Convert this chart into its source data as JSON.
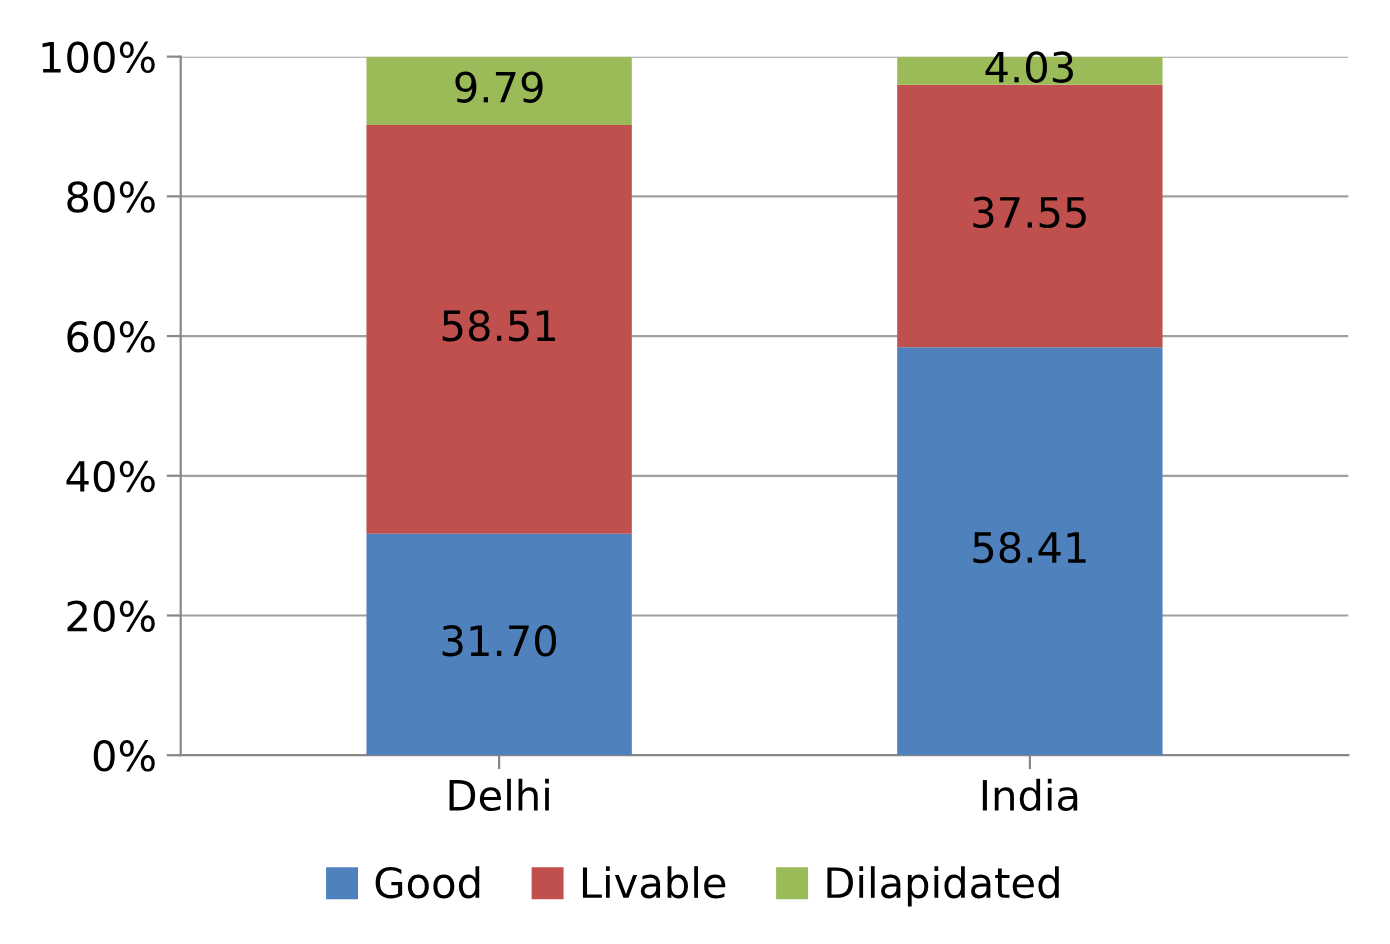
{
  "chart_data": {
    "type": "bar",
    "stacked": true,
    "categories": [
      "Delhi",
      "India"
    ],
    "series": [
      {
        "name": "Good",
        "color": "#4f81bd",
        "values": [
          31.7,
          58.41
        ],
        "value_labels": [
          "31.70",
          "58.41"
        ]
      },
      {
        "name": "Livable",
        "color": "#c0504d",
        "values": [
          58.51,
          37.55
        ],
        "value_labels": [
          "58.51",
          "37.55"
        ]
      },
      {
        "name": "Dilapidated",
        "color": "#9bbb59",
        "values": [
          9.79,
          4.03
        ],
        "value_labels": [
          "9.79",
          "4.03"
        ]
      }
    ],
    "ylim": [
      0,
      100
    ],
    "yticks": [
      {
        "value": 0,
        "label": "0%"
      },
      {
        "value": 20,
        "label": "20%"
      },
      {
        "value": 40,
        "label": "40%"
      },
      {
        "value": 60,
        "label": "60%"
      },
      {
        "value": 80,
        "label": "80%"
      },
      {
        "value": 100,
        "label": "100%"
      }
    ],
    "grid": "y",
    "legend": "bottom"
  }
}
